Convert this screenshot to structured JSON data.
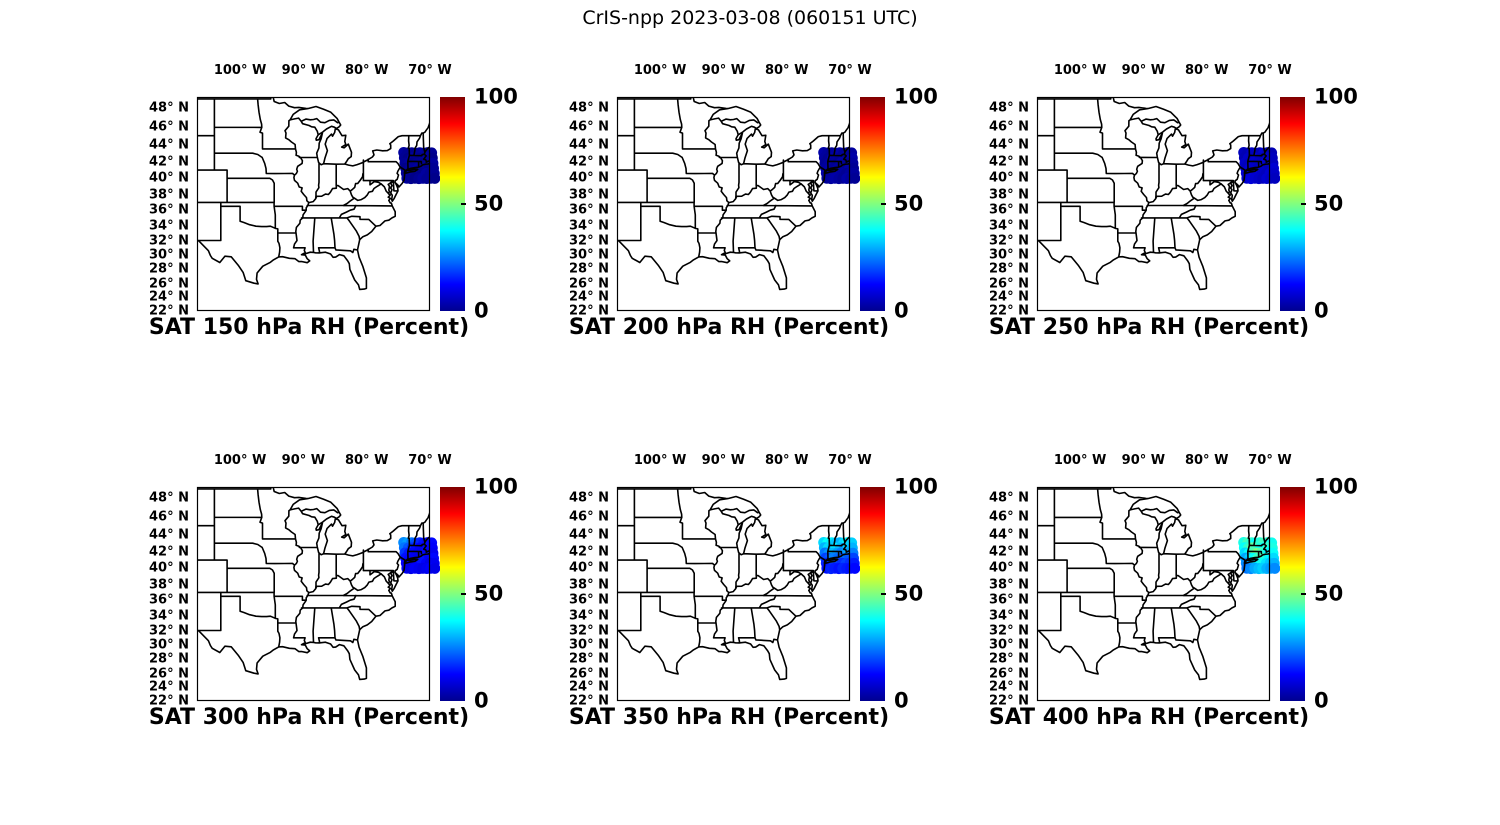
{
  "title": "CrIS-npp 2023-03-08 (060151 UTC)",
  "colorbar": {
    "max_label": "100",
    "mid_label": "50",
    "min_label": "0",
    "min": 0,
    "max": 100,
    "colormap": "jet"
  },
  "axes": {
    "lon_tick_labels": [
      "100° W",
      "90° W",
      "80° W",
      "70° W"
    ],
    "lon_tick_values": [
      -100,
      -90,
      -80,
      -70
    ],
    "lat_tick_labels": [
      "48° N",
      "46° N",
      "44° N",
      "42° N",
      "40° N",
      "38° N",
      "36° N",
      "34° N",
      "32° N",
      "30° N",
      "28° N",
      "26° N",
      "24° N",
      "22° N"
    ],
    "lat_tick_values": [
      48,
      46,
      44,
      42,
      40,
      38,
      36,
      34,
      32,
      30,
      28,
      26,
      24,
      22
    ]
  },
  "subplots": [
    {
      "level_hPa": 150,
      "title": "SAT 150 hPa RH (Percent)"
    },
    {
      "level_hPa": 200,
      "title": "SAT 200 hPa RH (Percent)"
    },
    {
      "level_hPa": 250,
      "title": "SAT 250 hPa RH (Percent)"
    },
    {
      "level_hPa": 300,
      "title": "SAT 300 hPa RH (Percent)"
    },
    {
      "level_hPa": 350,
      "title": "SAT 350 hPa RH (Percent)"
    },
    {
      "level_hPa": 400,
      "title": "SAT 400 hPa RH (Percent)"
    }
  ],
  "chart_data": {
    "type": "scatter",
    "subtype": "geo-scatter-grid",
    "projection": "mercator",
    "extent": {
      "lon": [
        -106.8,
        -70.0
      ],
      "lat": [
        22.0,
        49.2
      ]
    },
    "value_range": [
      0,
      100
    ],
    "units": "Percent",
    "grid": false,
    "legend_position": "colorbar-right",
    "footprints": [
      [
        -74.15,
        43.08
      ],
      [
        -73.52,
        43.02
      ],
      [
        -72.89,
        43.06
      ],
      [
        -72.26,
        43.0
      ],
      [
        -71.63,
        43.05
      ],
      [
        -71.0,
        43.01
      ],
      [
        -70.37,
        43.07
      ],
      [
        -69.74,
        43.03
      ],
      [
        -74.05,
        42.46
      ],
      [
        -73.42,
        42.41
      ],
      [
        -72.79,
        42.45
      ],
      [
        -72.16,
        42.4
      ],
      [
        -71.53,
        42.44
      ],
      [
        -70.9,
        42.42
      ],
      [
        -70.27,
        42.46
      ],
      [
        -69.64,
        42.43
      ],
      [
        -73.95,
        41.85
      ],
      [
        -73.32,
        41.8
      ],
      [
        -72.69,
        41.84
      ],
      [
        -72.06,
        41.79
      ],
      [
        -71.43,
        41.83
      ],
      [
        -70.8,
        41.81
      ],
      [
        -70.17,
        41.85
      ],
      [
        -69.54,
        41.82
      ],
      [
        -73.85,
        41.24
      ],
      [
        -73.22,
        41.19
      ],
      [
        -72.59,
        41.23
      ],
      [
        -71.96,
        41.18
      ],
      [
        -71.33,
        41.22
      ],
      [
        -70.7,
        41.2
      ],
      [
        -70.07,
        41.24
      ],
      [
        -69.44,
        41.21
      ],
      [
        -73.75,
        40.63
      ],
      [
        -73.12,
        40.58
      ],
      [
        -72.49,
        40.62
      ],
      [
        -71.86,
        40.57
      ],
      [
        -71.23,
        40.61
      ],
      [
        -70.6,
        40.59
      ],
      [
        -69.97,
        40.63
      ],
      [
        -69.34,
        40.6
      ],
      [
        -73.65,
        40.02
      ],
      [
        -73.02,
        39.97
      ],
      [
        -72.39,
        40.01
      ],
      [
        -71.76,
        39.96
      ],
      [
        -71.13,
        40.0
      ],
      [
        -70.5,
        39.98
      ],
      [
        -69.87,
        40.02
      ],
      [
        -69.24,
        39.99
      ]
    ],
    "series": [
      {
        "name": "SAT 150 hPa RH (Percent)",
        "values": [
          3,
          2,
          2,
          1,
          2,
          3,
          2,
          2,
          2,
          1,
          3,
          2,
          1,
          2,
          3,
          1,
          2,
          3,
          1,
          2,
          2,
          1,
          2,
          3,
          1,
          2,
          2,
          3,
          2,
          2,
          1,
          2,
          2,
          1,
          3,
          2,
          1,
          3,
          2,
          2,
          3,
          2,
          1,
          2,
          3,
          2,
          2,
          1
        ]
      },
      {
        "name": "SAT 200 hPa RH (Percent)",
        "values": [
          4,
          3,
          2,
          3,
          4,
          2,
          3,
          3,
          3,
          2,
          4,
          3,
          2,
          3,
          2,
          4,
          2,
          3,
          3,
          2,
          4,
          3,
          2,
          3,
          3,
          4,
          2,
          3,
          3,
          2,
          4,
          2,
          4,
          2,
          3,
          4,
          3,
          2,
          3,
          3,
          2,
          3,
          4,
          3,
          2,
          4,
          3,
          2
        ]
      },
      {
        "name": "SAT 250 hPa RH (Percent)",
        "values": [
          6,
          5,
          7,
          6,
          5,
          8,
          6,
          5,
          5,
          7,
          6,
          8,
          6,
          5,
          7,
          6,
          7,
          6,
          8,
          7,
          6,
          9,
          7,
          6,
          6,
          8,
          7,
          6,
          9,
          7,
          6,
          8,
          8,
          6,
          7,
          9,
          7,
          6,
          8,
          7,
          7,
          9,
          8,
          7,
          6,
          8,
          7,
          6
        ]
      },
      {
        "name": "SAT 300 hPa RH (Percent)",
        "values": [
          26,
          28,
          24,
          20,
          16,
          14,
          12,
          13,
          24,
          21,
          17,
          14,
          12,
          11,
          13,
          12,
          18,
          15,
          13,
          12,
          11,
          13,
          12,
          11,
          14,
          13,
          11,
          10,
          12,
          14,
          12,
          13,
          12,
          11,
          10,
          12,
          14,
          12,
          10,
          11,
          11,
          10,
          12,
          11,
          10,
          11,
          12,
          10
        ]
      },
      {
        "name": "SAT 350 hPa RH (Percent)",
        "values": [
          34,
          38,
          36,
          32,
          30,
          34,
          37,
          33,
          30,
          34,
          32,
          36,
          31,
          28,
          33,
          30,
          24,
          27,
          31,
          28,
          25,
          27,
          29,
          25,
          19,
          21,
          25,
          23,
          21,
          23,
          21,
          19,
          16,
          18,
          21,
          19,
          17,
          19,
          17,
          15,
          14,
          16,
          15,
          14,
          16,
          15,
          14,
          13
        ]
      },
      {
        "name": "SAT 400 hPa RH (Percent)",
        "values": [
          40,
          44,
          42,
          38,
          41,
          44,
          42,
          39,
          38,
          42,
          47,
          44,
          40,
          38,
          43,
          40,
          34,
          38,
          45,
          50,
          46,
          41,
          37,
          38,
          29,
          33,
          38,
          43,
          45,
          41,
          37,
          34,
          26,
          29,
          33,
          37,
          39,
          35,
          32,
          30,
          24,
          26,
          29,
          31,
          33,
          30,
          28,
          26
        ]
      }
    ]
  }
}
